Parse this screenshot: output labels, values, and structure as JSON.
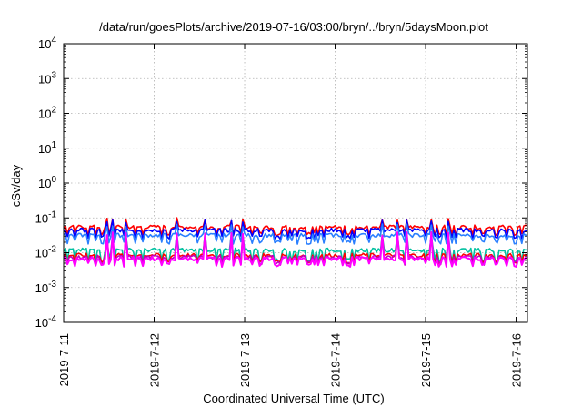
{
  "chart_data": {
    "type": "line",
    "title": "/data/run/goesPlots/archive/2019-07-16/03:00/bryn/../bryn/5daysMoon.plot",
    "xlabel": "Coordinated Universal Time (UTC)",
    "ylabel": "cSv/day",
    "yscale": "log",
    "ylim": [
      0.0001,
      10000
    ],
    "xlim": [
      "2019-07-11",
      "2019-07-16 03:00"
    ],
    "x_ticks": [
      "2019-7-11",
      "2019-7-12",
      "2019-7-13",
      "2019-7-14",
      "2019-7-15",
      "2019-7-16"
    ],
    "y_ticks": [
      {
        "base": "10",
        "exp": "-4"
      },
      {
        "base": "10",
        "exp": "-3"
      },
      {
        "base": "10",
        "exp": "-2"
      },
      {
        "base": "10",
        "exp": "-1"
      },
      {
        "base": "10",
        "exp": "0"
      },
      {
        "base": "10",
        "exp": "1"
      },
      {
        "base": "10",
        "exp": "2"
      },
      {
        "base": "10",
        "exp": "3"
      },
      {
        "base": "10",
        "exp": "4"
      }
    ],
    "grid": true,
    "x_start": "2019-07-11 00:00",
    "x_step_hours": 0.5,
    "series": [
      {
        "color": "#ff0000",
        "base": 0.055,
        "dip": 0.035,
        "spike": 0.09
      },
      {
        "color": "#0000ff",
        "base": 0.045,
        "dip": 0.028,
        "spike": 0.08
      },
      {
        "color": "#2a7fff",
        "base": 0.032,
        "dip": 0.02,
        "spike": 0.06
      },
      {
        "color": "#00c0a0",
        "base": 0.012,
        "dip": 0.006,
        "spike": 0.035
      },
      {
        "color": "#ff0000",
        "base": 0.0085,
        "dip": 0.0055,
        "spike": 0.03
      },
      {
        "color": "#c000c0",
        "base": 0.0075,
        "dip": 0.005,
        "spike": 0.03
      },
      {
        "color": "#ff00ff",
        "base": 0.0068,
        "dip": 0.0045,
        "spike": 0.035
      }
    ]
  }
}
